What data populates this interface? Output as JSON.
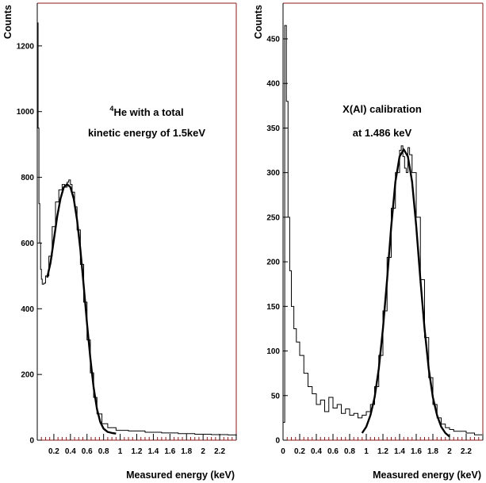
{
  "chart_data": [
    {
      "type": "line",
      "xlabel": "Measured energy (keV)",
      "ylabel": "Counts",
      "xlim": [
        0,
        2.4
      ],
      "ylim": [
        0,
        1330
      ],
      "x_ticks": [
        0.2,
        0.4,
        0.6,
        0.8,
        1,
        1.2,
        1.4,
        1.6,
        1.8,
        2,
        2.2
      ],
      "x_tick_labels": [
        "0.2",
        "0.4",
        "0.6",
        "0.8",
        "1",
        "1.2",
        "1.4",
        "1.6",
        "1.8",
        "2",
        "2.2"
      ],
      "y_ticks": [
        0,
        200,
        400,
        600,
        800,
        1000,
        1200
      ],
      "y_tick_labels": [
        "0",
        "200",
        "400",
        "600",
        "800",
        "1000",
        "1200"
      ],
      "annotation": {
        "superscript": "4",
        "lines": [
          "He with a total",
          "kinetic energy of 1.5keV"
        ]
      },
      "series": [
        {
          "style": "histogram",
          "x": [
            0.0,
            0.01,
            0.02,
            0.03,
            0.04,
            0.05,
            0.06,
            0.08,
            0.1,
            0.14,
            0.18,
            0.22,
            0.26,
            0.3,
            0.33,
            0.36,
            0.38,
            0.4,
            0.42,
            0.45,
            0.48,
            0.52,
            0.56,
            0.6,
            0.64,
            0.68,
            0.72,
            0.78,
            0.85,
            0.95,
            1.1,
            1.3,
            1.5,
            1.7,
            1.9,
            2.1,
            2.3,
            2.4
          ],
          "values": [
            1270,
            950,
            720,
            600,
            520,
            490,
            475,
            478,
            500,
            560,
            650,
            725,
            762,
            778,
            770,
            785,
            792,
            778,
            755,
            710,
            640,
            535,
            420,
            305,
            205,
            130,
            80,
            50,
            38,
            30,
            28,
            24,
            22,
            20,
            18,
            17,
            16,
            15
          ]
        },
        {
          "style": "fit",
          "x": [
            0.12,
            0.16,
            0.2,
            0.24,
            0.28,
            0.32,
            0.36,
            0.4,
            0.44,
            0.48,
            0.52,
            0.56,
            0.6,
            0.64,
            0.68,
            0.72,
            0.76,
            0.8,
            0.85,
            0.9,
            0.95
          ],
          "values": [
            495,
            540,
            610,
            680,
            735,
            770,
            779,
            770,
            735,
            670,
            580,
            470,
            355,
            250,
            160,
            95,
            55,
            35,
            25,
            22,
            20
          ]
        }
      ]
    },
    {
      "type": "line",
      "xlabel": "Measured energy (keV)",
      "ylabel": "Counts",
      "xlim": [
        0,
        2.4
      ],
      "ylim": [
        0,
        490
      ],
      "x_ticks": [
        0,
        0.2,
        0.4,
        0.6,
        0.8,
        1,
        1.2,
        1.4,
        1.6,
        1.8,
        2,
        2.2
      ],
      "x_tick_labels": [
        "0",
        "0.2",
        "0.4",
        "0.6",
        "0.8",
        "1",
        "1.2",
        "1.4",
        "1.6",
        "1.8",
        "2",
        "2.2"
      ],
      "y_ticks": [
        0,
        50,
        100,
        150,
        200,
        250,
        300,
        350,
        400,
        450
      ],
      "y_tick_labels": [
        "0",
        "50",
        "100",
        "150",
        "200",
        "250",
        "300",
        "350",
        "400",
        "450"
      ],
      "annotation": {
        "lines": [
          "X(Al) calibration",
          "at 1.486 keV"
        ]
      },
      "series": [
        {
          "style": "histogram",
          "x": [
            0.0,
            0.02,
            0.04,
            0.06,
            0.08,
            0.1,
            0.13,
            0.16,
            0.2,
            0.25,
            0.3,
            0.35,
            0.4,
            0.45,
            0.5,
            0.55,
            0.6,
            0.65,
            0.7,
            0.75,
            0.8,
            0.85,
            0.9,
            0.95,
            1.0,
            1.05,
            1.1,
            1.15,
            1.2,
            1.25,
            1.3,
            1.35,
            1.4,
            1.42,
            1.44,
            1.46,
            1.48,
            1.5,
            1.52,
            1.55,
            1.6,
            1.65,
            1.7,
            1.75,
            1.8,
            1.85,
            1.9,
            1.95,
            2.0,
            2.05,
            2.1,
            2.2,
            2.3
          ],
          "values": [
            20,
            465,
            380,
            250,
            190,
            150,
            125,
            110,
            95,
            75,
            60,
            52,
            40,
            45,
            32,
            48,
            36,
            40,
            30,
            35,
            28,
            30,
            25,
            28,
            32,
            40,
            60,
            95,
            145,
            205,
            260,
            300,
            325,
            330,
            318,
            305,
            300,
            328,
            320,
            300,
            250,
            180,
            115,
            70,
            40,
            25,
            18,
            14,
            12,
            10,
            10,
            8,
            6
          ]
        },
        {
          "style": "fit",
          "x": [
            0.95,
            1.0,
            1.05,
            1.1,
            1.15,
            1.2,
            1.25,
            1.3,
            1.35,
            1.4,
            1.45,
            1.5,
            1.55,
            1.6,
            1.65,
            1.7,
            1.75,
            1.8,
            1.85,
            1.9,
            1.95,
            2.0
          ],
          "values": [
            8,
            15,
            28,
            48,
            80,
            125,
            180,
            240,
            290,
            318,
            326,
            318,
            290,
            240,
            180,
            125,
            80,
            48,
            28,
            15,
            8,
            4
          ]
        }
      ]
    }
  ]
}
